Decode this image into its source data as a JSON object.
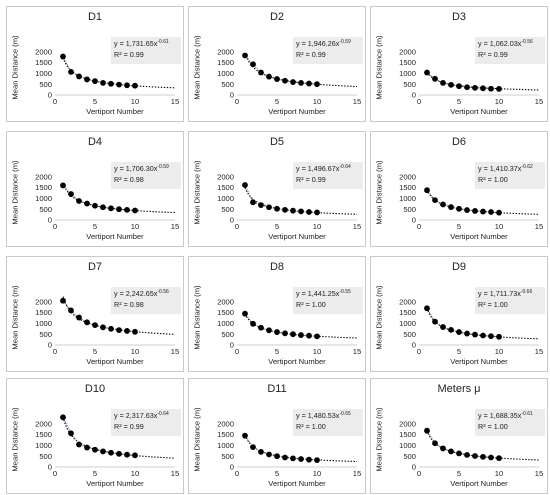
{
  "figure": {
    "xlabel": "Vertiport Number",
    "ylabel": "Mean Distance (m)",
    "xticks": [
      "0",
      "5",
      "10",
      "15"
    ],
    "yticks": [
      "0",
      "500",
      "1000",
      "1500",
      "2000"
    ]
  },
  "colors": {
    "marker": "#000000",
    "fit": "#000000",
    "connector": "#3d6fb0",
    "eqbox": "#ececec",
    "border": "#c9c9c9"
  },
  "chart_data": [
    {
      "type": "scatter",
      "title": "D1",
      "coef": "1,731.65",
      "exp": "-0.61",
      "r2": "R² = 0.99",
      "x": [
        1,
        2,
        3,
        4,
        5,
        6,
        7,
        8,
        9,
        10
      ],
      "y": [
        1780,
        1070,
        860,
        720,
        640,
        560,
        520,
        480,
        450,
        430
      ],
      "xlabel": "Vertiport Number",
      "ylabel": "Mean Distance (m)",
      "xlim": [
        0,
        15
      ],
      "ylim": [
        0,
        2500
      ],
      "fit_to": 15
    },
    {
      "type": "scatter",
      "title": "D2",
      "coef": "1,946.26",
      "exp": "-0.59",
      "r2": "R² = 0.99",
      "x": [
        1,
        2,
        3,
        4,
        5,
        6,
        7,
        8,
        9,
        10
      ],
      "y": [
        1830,
        1420,
        1040,
        850,
        740,
        660,
        600,
        560,
        530,
        500
      ],
      "xlabel": "Vertiport Number",
      "ylabel": "Mean Distance (m)",
      "xlim": [
        0,
        15
      ],
      "ylim": [
        0,
        2500
      ],
      "fit_to": 15
    },
    {
      "type": "scatter",
      "title": "D3",
      "coef": "1,062.03",
      "exp": "-0.56",
      "r2": "R² = 0.99",
      "x": [
        1,
        2,
        3,
        4,
        5,
        6,
        7,
        8,
        9,
        10
      ],
      "y": [
        1040,
        750,
        560,
        470,
        410,
        360,
        330,
        310,
        290,
        280
      ],
      "xlabel": "Vertiport Number",
      "ylabel": "Mean Distance (m)",
      "xlim": [
        0,
        15
      ],
      "ylim": [
        0,
        2500
      ],
      "fit_to": 15
    },
    {
      "type": "scatter",
      "title": "D4",
      "coef": "1,706.30",
      "exp": "-0.59",
      "r2": "R² = 0.98",
      "x": [
        1,
        2,
        3,
        4,
        5,
        6,
        7,
        8,
        9,
        10
      ],
      "y": [
        1600,
        1200,
        880,
        760,
        660,
        590,
        540,
        500,
        470,
        440
      ],
      "xlabel": "Vertiport Number",
      "ylabel": "Mean Distance (m)",
      "xlim": [
        0,
        15
      ],
      "ylim": [
        0,
        2500
      ],
      "fit_to": 15
    },
    {
      "type": "scatter",
      "title": "D5",
      "coef": "1,496.67",
      "exp": "-0.64",
      "r2": "R² = 0.99",
      "x": [
        1,
        2,
        3,
        4,
        5,
        6,
        7,
        8,
        9,
        10
      ],
      "y": [
        1620,
        820,
        690,
        590,
        520,
        470,
        430,
        400,
        370,
        350
      ],
      "xlabel": "Vertiport Number",
      "ylabel": "Mean Distance (m)",
      "xlim": [
        0,
        15
      ],
      "ylim": [
        0,
        2500
      ],
      "fit_to": 15
    },
    {
      "type": "scatter",
      "title": "D6",
      "coef": "1,410.37",
      "exp": "-0.62",
      "r2": "R² = 1.00",
      "x": [
        1,
        2,
        3,
        4,
        5,
        6,
        7,
        8,
        9,
        10
      ],
      "y": [
        1380,
        920,
        720,
        600,
        520,
        460,
        420,
        390,
        370,
        340
      ],
      "xlabel": "Vertiport Number",
      "ylabel": "Mean Distance (m)",
      "xlim": [
        0,
        15
      ],
      "ylim": [
        0,
        2500
      ],
      "fit_to": 15
    },
    {
      "type": "scatter",
      "title": "D7",
      "coef": "2,242.65",
      "exp": "-0.56",
      "r2": "R² = 0.98",
      "x": [
        1,
        2,
        3,
        4,
        5,
        6,
        7,
        8,
        9,
        10
      ],
      "y": [
        2050,
        1600,
        1270,
        1050,
        920,
        820,
        750,
        690,
        650,
        610
      ],
      "xlabel": "Vertiport Number",
      "ylabel": "Mean Distance (m)",
      "xlim": [
        0,
        15
      ],
      "ylim": [
        0,
        2500
      ],
      "fit_to": 15
    },
    {
      "type": "scatter",
      "title": "D8",
      "coef": "1,441.25",
      "exp": "-0.55",
      "r2": "R² = 1.00",
      "x": [
        1,
        2,
        3,
        4,
        5,
        6,
        7,
        8,
        9,
        10
      ],
      "y": [
        1450,
        980,
        800,
        680,
        600,
        540,
        500,
        460,
        430,
        400
      ],
      "xlabel": "Vertiport Number",
      "ylabel": "Mean Distance (m)",
      "xlim": [
        0,
        15
      ],
      "ylim": [
        0,
        2500
      ],
      "fit_to": 15
    },
    {
      "type": "scatter",
      "title": "D9",
      "coef": "1,711.73",
      "exp": "-0.66",
      "r2": "R² = 1.00",
      "x": [
        1,
        2,
        3,
        4,
        5,
        6,
        7,
        8,
        9,
        10
      ],
      "y": [
        1700,
        1080,
        830,
        700,
        600,
        530,
        480,
        440,
        410,
        380
      ],
      "xlabel": "Vertiport Number",
      "ylabel": "Mean Distance (m)",
      "xlim": [
        0,
        15
      ],
      "ylim": [
        0,
        2500
      ],
      "fit_to": 15
    },
    {
      "type": "scatter",
      "title": "D10",
      "coef": "2,317.63",
      "exp": "-0.64",
      "r2": "R² = 0.99",
      "x": [
        1,
        2,
        3,
        4,
        5,
        6,
        7,
        8,
        9,
        10
      ],
      "y": [
        2300,
        1560,
        1040,
        900,
        800,
        720,
        660,
        610,
        570,
        540
      ],
      "xlabel": "Vertiport Number",
      "ylabel": "Mean Distance (m)",
      "xlim": [
        0,
        15
      ],
      "ylim": [
        0,
        2500
      ],
      "fit_to": 15
    },
    {
      "type": "scatter",
      "title": "D11",
      "coef": "1,480.53",
      "exp": "-0.65",
      "r2": "R² = 1.00",
      "x": [
        1,
        2,
        3,
        4,
        5,
        6,
        7,
        8,
        9,
        10
      ],
      "y": [
        1450,
        920,
        700,
        580,
        500,
        440,
        400,
        370,
        340,
        320
      ],
      "xlabel": "Vertiport Number",
      "ylabel": "Mean Distance (m)",
      "xlim": [
        0,
        15
      ],
      "ylim": [
        0,
        2500
      ],
      "fit_to": 15
    },
    {
      "type": "scatter",
      "title": "Meters μ",
      "coef": "1,688.35",
      "exp": "-0.61",
      "r2": "R² = 1.00",
      "x": [
        1,
        2,
        3,
        4,
        5,
        6,
        7,
        8,
        9,
        10
      ],
      "y": [
        1680,
        1100,
        860,
        720,
        630,
        560,
        510,
        470,
        440,
        410
      ],
      "xlabel": "Vertiport Number",
      "ylabel": "Mean Distance (m)",
      "xlim": [
        0,
        15
      ],
      "ylim": [
        0,
        2500
      ],
      "fit_to": 15
    }
  ]
}
